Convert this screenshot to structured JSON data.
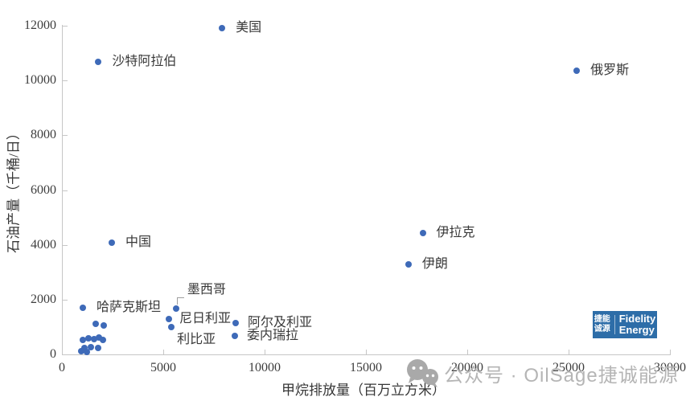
{
  "colors": {
    "marker": "#3e6ab8",
    "axis": "#c6c6c6",
    "tick_text": "#3d3d3d",
    "label_text": "#383838",
    "watermark": "#b5b5b5",
    "logo_bg": "#2d6da8"
  },
  "chart_data": {
    "type": "scatter",
    "title": "",
    "xlabel": "甲烷排放量（百万立方米）",
    "ylabel": "石油产量（千桶/日）",
    "xlim": [
      0,
      30000
    ],
    "ylim": [
      0,
      12000
    ],
    "x_ticks": [
      0,
      5000,
      10000,
      15000,
      20000,
      25000,
      30000
    ],
    "y_ticks": [
      0,
      2000,
      4000,
      6000,
      8000,
      10000,
      12000
    ],
    "grid": false,
    "legend": "none",
    "labeled_points": [
      {
        "label": "美国",
        "x": 7900,
        "y": 11900,
        "label_pos": "right"
      },
      {
        "label": "沙特阿拉伯",
        "x": 1800,
        "y": 10680,
        "label_pos": "right"
      },
      {
        "label": "俄罗斯",
        "x": 25400,
        "y": 10350,
        "label_pos": "right"
      },
      {
        "label": "中国",
        "x": 2460,
        "y": 4090,
        "label_pos": "right"
      },
      {
        "label": "伊拉克",
        "x": 17800,
        "y": 4420,
        "label_pos": "right"
      },
      {
        "label": "伊朗",
        "x": 17100,
        "y": 3300,
        "label_pos": "right"
      },
      {
        "label": "哈萨克斯坦",
        "x": 1030,
        "y": 1700,
        "label_pos": "right"
      },
      {
        "label": "墨西哥",
        "x": 5630,
        "y": 1680,
        "label_pos": "callout-above"
      },
      {
        "label": "尼日利亚",
        "x": 5280,
        "y": 1290,
        "label_pos": "right",
        "label_dx": 13
      },
      {
        "label": "利比亚",
        "x": 5400,
        "y": 1000,
        "label_pos": "below-right"
      },
      {
        "label": "阿尔及利亚",
        "x": 8570,
        "y": 1150,
        "label_pos": "right",
        "label_dx": 15
      },
      {
        "label": "委内瑞拉",
        "x": 8530,
        "y": 680,
        "label_pos": "right",
        "label_dx": 15
      }
    ],
    "unlabeled_points": [
      [
        1670,
        1120
      ],
      [
        2060,
        1060
      ],
      [
        1030,
        530
      ],
      [
        1310,
        590
      ],
      [
        1590,
        560
      ],
      [
        1830,
        620
      ],
      [
        2020,
        530
      ],
      [
        1110,
        240
      ],
      [
        1430,
        260
      ],
      [
        1790,
        240
      ],
      [
        950,
        120
      ],
      [
        1230,
        90
      ]
    ]
  },
  "watermark": {
    "icon": "wechat-icon",
    "text": "公众号 · OilSage捷诚能源"
  },
  "logo": {
    "cn_top": "捷能",
    "cn_bottom": "诚源",
    "en_top": "Fidelity",
    "en_bottom": "Energy"
  }
}
